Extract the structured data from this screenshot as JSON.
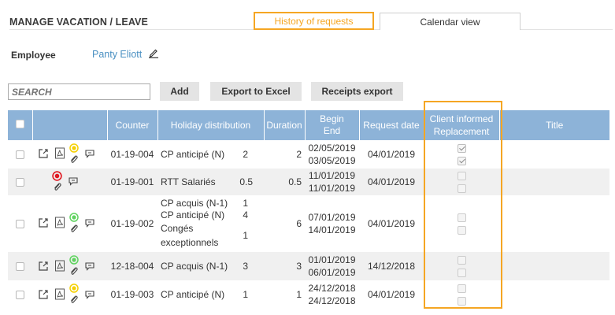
{
  "page": {
    "title": "MANAGE VACATION / LEAVE",
    "tabs": {
      "history": "History of requests",
      "calendar": "Calendar view"
    }
  },
  "employee": {
    "label": "Employee",
    "name": "Panty Eliott"
  },
  "toolbar": {
    "search_placeholder": "SEARCH",
    "add_label": "Add",
    "export_label": "Export to Excel",
    "receipts_label": "Receipts export"
  },
  "table": {
    "headers": {
      "counter": "Counter",
      "holiday_distribution": "Holiday distribution",
      "duration": "Duration",
      "begin": "Begin",
      "end": "End",
      "request_date": "Request date",
      "client_informed": "Client informed",
      "replacement": "Replacement",
      "title": "Title"
    },
    "rows": [
      {
        "counter": "01-19-004",
        "distribution": [
          {
            "label": "CP anticipé (N)",
            "value": "2"
          }
        ],
        "duration": "2",
        "begin": "02/05/2019",
        "end": "03/05/2019",
        "request_date": "04/01/2019",
        "status": "pending",
        "client_informed": true,
        "replacement": true,
        "title": ""
      },
      {
        "counter": "01-19-001",
        "distribution": [
          {
            "label": "RTT Salariés",
            "value": "0.5"
          }
        ],
        "duration": "0.5",
        "begin": "11/01/2019",
        "end": "11/01/2019",
        "request_date": "04/01/2019",
        "status": "refused",
        "client_informed": false,
        "replacement": false,
        "title": ""
      },
      {
        "counter": "01-19-002",
        "distribution": [
          {
            "label": "CP acquis (N-1)",
            "value": "1"
          },
          {
            "label": "CP anticipé (N)",
            "value": "4"
          },
          {
            "label": "Congés exceptionnels",
            "value": "1"
          }
        ],
        "duration": "6",
        "begin": "07/01/2019",
        "end": "14/01/2019",
        "request_date": "04/01/2019",
        "status": "approved",
        "client_informed": false,
        "replacement": false,
        "title": ""
      },
      {
        "counter": "12-18-004",
        "distribution": [
          {
            "label": "CP acquis (N-1)",
            "value": "3"
          }
        ],
        "duration": "3",
        "begin": "01/01/2019",
        "end": "06/01/2019",
        "request_date": "14/12/2018",
        "status": "approved",
        "client_informed": false,
        "replacement": false,
        "title": ""
      },
      {
        "counter": "01-19-003",
        "distribution": [
          {
            "label": "CP anticipé (N)",
            "value": "1"
          }
        ],
        "duration": "1",
        "begin": "24/12/2018",
        "end": "24/12/2018",
        "request_date": "04/01/2019",
        "status": "pending",
        "client_informed": false,
        "replacement": false,
        "title": ""
      }
    ]
  },
  "colors": {
    "accent": "#f5a623",
    "header_bg": "#8db3d8",
    "link": "#4a90c2",
    "status_pending": "#f5d000",
    "status_refused": "#e01b24",
    "status_approved": "#5fd35f"
  }
}
